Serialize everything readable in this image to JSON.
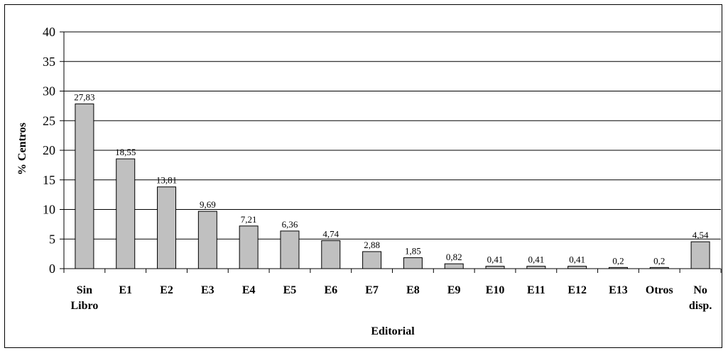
{
  "chart_data": {
    "type": "bar",
    "title": "",
    "xlabel": "Editorial",
    "ylabel": "% Centros",
    "ylim": [
      0,
      40
    ],
    "yticks": [
      0,
      5,
      10,
      15,
      20,
      25,
      30,
      35,
      40
    ],
    "grid": true,
    "categories": [
      [
        "Sin",
        "Libro"
      ],
      [
        "E1"
      ],
      [
        "E2"
      ],
      [
        "E3"
      ],
      [
        "E4"
      ],
      [
        "E5"
      ],
      [
        "E6"
      ],
      [
        "E7"
      ],
      [
        "E8"
      ],
      [
        "E9"
      ],
      [
        "E10"
      ],
      [
        "E11"
      ],
      [
        "E12"
      ],
      [
        "E13"
      ],
      [
        "Otros"
      ],
      [
        "No",
        "disp."
      ]
    ],
    "values": [
      27.83,
      18.55,
      13.81,
      9.69,
      7.21,
      6.36,
      4.74,
      2.88,
      1.85,
      0.82,
      0.41,
      0.41,
      0.41,
      0.2,
      0.2,
      4.54
    ],
    "data_labels": [
      "27,83",
      "18,55",
      "13,81",
      "9,69",
      "7,21",
      "6,36",
      "4,74",
      "2,88",
      "1,85",
      "0,82",
      "0,41",
      "0,41",
      "0,41",
      "0,2",
      "0,2",
      "4,54"
    ],
    "colors": {
      "bar_fill": "#c0c0c0",
      "bar_stroke": "#000000",
      "grid": "#000000"
    }
  }
}
